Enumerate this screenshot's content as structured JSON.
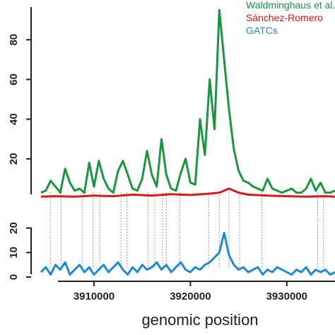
{
  "chart_data": {
    "type": "line",
    "xlabel": "genomic position",
    "colors": {
      "waldminghaus": "#1a9641",
      "sanchez": "#d7191c",
      "gatc": "#1f8ad2",
      "guide": "#9a9a9a",
      "axis": "#222222"
    },
    "legend": {
      "placement": "top-right",
      "entries": [
        "Waldminghaus et al.",
        "Sánchez-Romero",
        "GATCs"
      ]
    },
    "x_axis": {
      "ticks": [
        3910000,
        3920000,
        3930000
      ],
      "tick_labels": [
        "3910000",
        "3920000",
        "3930000"
      ],
      "xlim": [
        3904500,
        3935000
      ]
    },
    "panels": [
      {
        "name": "top",
        "ylim": [
          0,
          100
        ],
        "y_ticks": [
          20,
          40,
          60,
          80
        ],
        "y_tick_labels": [
          "20",
          "40",
          "60",
          "80"
        ],
        "series": [
          {
            "name": "Waldminghaus et al.",
            "color": "#1a9641",
            "x": [
              3904500,
              3905000,
              3905500,
              3906000,
              3906500,
              3907000,
              3907500,
              3908000,
              3908500,
              3909000,
              3909500,
              3910000,
              3910500,
              3911000,
              3911500,
              3912000,
              3912500,
              3913000,
              3913500,
              3914000,
              3914500,
              3915000,
              3915500,
              3916000,
              3916500,
              3917000,
              3917500,
              3918000,
              3918500,
              3919000,
              3919500,
              3920000,
              3920500,
              3921000,
              3921500,
              3922000,
              3922500,
              3923000,
              3923500,
              3924000,
              3924500,
              3925000,
              3925500,
              3926000,
              3926500,
              3927000,
              3927500,
              3928000,
              3928500,
              3929000,
              3929500,
              3930000,
              3930500,
              3931000,
              3931500,
              3932000,
              3932500,
              3933000,
              3933500,
              3934000,
              3934500,
              3935000
            ],
            "y": [
              3,
              4,
              9,
              6,
              3,
              15,
              8,
              4,
              5,
              3,
              18,
              6,
              19,
              10,
              5,
              3,
              14,
              19,
              12,
              5,
              4,
              10,
              24,
              12,
              6,
              30,
              12,
              5,
              4,
              13,
              20,
              8,
              7,
              40,
              22,
              60,
              35,
              95,
              70,
              45,
              25,
              14,
              9,
              8,
              6,
              5,
              4,
              10,
              5,
              4,
              3,
              4,
              5,
              3,
              3,
              5,
              10,
              4,
              8,
              3,
              3,
              4
            ]
          },
          {
            "name": "Sánchez-Romero",
            "color": "#d7191c",
            "x": [
              3904500,
              3906000,
              3908000,
              3910000,
              3912000,
              3914000,
              3916000,
              3918000,
              3920000,
              3922000,
              3923000,
              3924000,
              3925000,
              3926000,
              3928000,
              3930000,
              3932000,
              3934000,
              3935000
            ],
            "y": [
              1,
              1.2,
              1,
              1.5,
              1.2,
              2,
              1.5,
              2.2,
              1.8,
              2.5,
              3,
              5,
              3,
              2,
              1.5,
              1.2,
              1,
              1.2,
              1
            ]
          }
        ]
      },
      {
        "name": "bottom",
        "ylim": [
          0,
          30
        ],
        "y_ticks": [
          0,
          10,
          20
        ],
        "y_tick_labels": [
          "0",
          "10",
          "20"
        ],
        "series": [
          {
            "name": "GATCs",
            "color": "#1f8ad2",
            "x": [
              3904500,
              3905000,
              3905500,
              3906000,
              3906500,
              3907000,
              3907500,
              3908000,
              3908500,
              3909000,
              3909500,
              3910000,
              3910500,
              3911000,
              3911500,
              3912000,
              3912500,
              3913000,
              3913500,
              3914000,
              3914500,
              3915000,
              3915500,
              3916000,
              3916500,
              3917000,
              3917500,
              3918000,
              3918500,
              3919000,
              3919500,
              3920000,
              3920500,
              3921000,
              3921500,
              3922000,
              3922500,
              3923000,
              3923500,
              3924000,
              3924500,
              3925000,
              3925500,
              3926000,
              3926500,
              3927000,
              3927500,
              3928000,
              3928500,
              3929000,
              3929500,
              3930000,
              3930500,
              3931000,
              3931500,
              3932000,
              3932500,
              3933000,
              3933500,
              3934000,
              3934500,
              3935000
            ],
            "y": [
              2,
              4,
              1,
              5,
              3,
              6,
              1,
              3,
              5,
              2,
              4,
              1,
              3,
              5,
              2,
              4,
              6,
              3,
              1,
              4,
              2,
              5,
              3,
              4,
              6,
              3,
              5,
              2,
              4,
              6,
              3,
              2,
              4,
              3,
              5,
              6,
              8,
              10,
              18,
              9,
              5,
              3,
              4,
              2,
              3,
              4,
              1,
              3,
              2,
              4,
              3,
              2,
              1,
              3,
              2,
              4,
              1,
              3,
              2,
              3,
              1,
              2
            ]
          }
        ]
      }
    ],
    "guide_lines_x": [
      3905500,
      3906600,
      3908800,
      3909900,
      3910600,
      3912800,
      3913400,
      3915600,
      3916300,
      3917100,
      3917500,
      3918900,
      3921900,
      3923000,
      3924000,
      3925100,
      3927400,
      3933200,
      3933800
    ]
  }
}
